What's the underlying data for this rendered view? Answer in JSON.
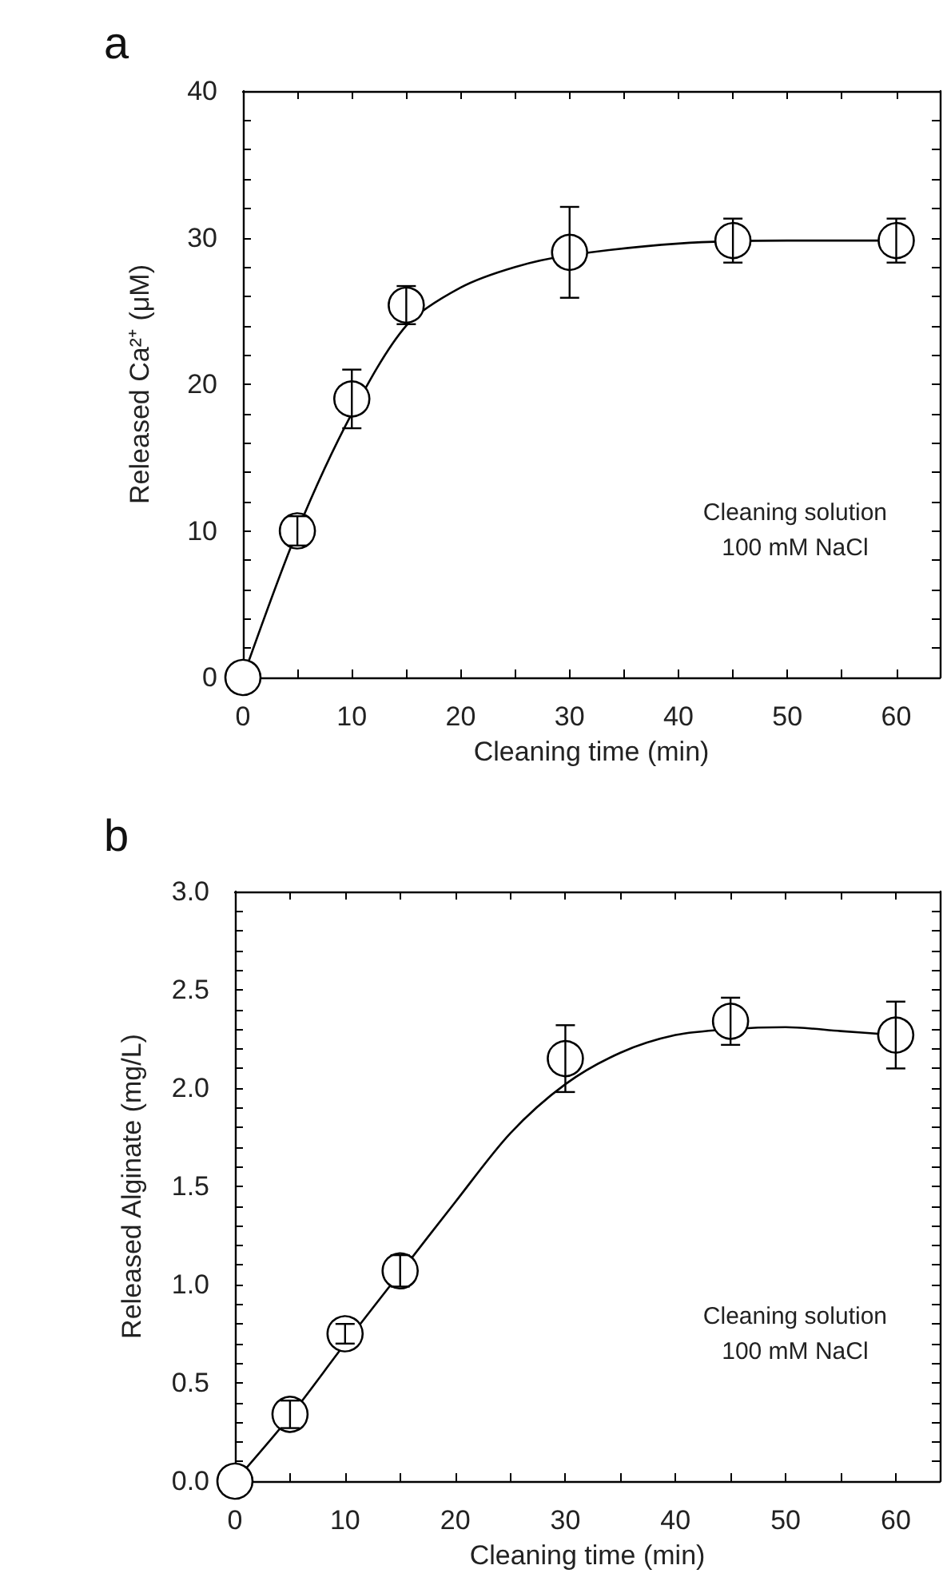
{
  "chart_data": [
    {
      "type": "scatter",
      "title": "a",
      "xlabel": "Cleaning time (min)",
      "ylabel": "Released Ca²⁺ (μM)",
      "annotations": [
        "Cleaning solution\n100 mM NaCl"
      ],
      "marker": "circle",
      "grid": false,
      "xlim": [
        0,
        64
      ],
      "xticks": [
        0,
        {
          "value": 5,
          "label": null
        },
        10,
        {
          "value": 15,
          "label": null
        },
        20,
        {
          "value": 25,
          "label": null
        },
        30,
        {
          "value": 35,
          "label": null
        },
        40,
        {
          "value": 45,
          "label": null
        },
        50,
        {
          "value": 55,
          "label": null
        },
        60
      ],
      "ylim": [
        0,
        40
      ],
      "yticks": [
        0,
        {
          "value": 2,
          "label": null
        },
        {
          "value": 4,
          "label": null
        },
        {
          "value": 6,
          "label": null
        },
        {
          "value": 8,
          "label": null
        },
        10,
        {
          "value": 12,
          "label": null
        },
        {
          "value": 14,
          "label": null
        },
        {
          "value": 16,
          "label": null
        },
        {
          "value": 18,
          "label": null
        },
        20,
        {
          "value": 22,
          "label": null
        },
        {
          "value": 24,
          "label": null
        },
        {
          "value": 26,
          "label": null
        },
        {
          "value": 28,
          "label": null
        },
        30,
        {
          "value": 32,
          "label": null
        },
        {
          "value": 34,
          "label": null
        },
        {
          "value": 36,
          "label": null
        },
        {
          "value": 38,
          "label": null
        },
        40
      ],
      "series": [
        {
          "color": "#000000",
          "x": [
            0,
            5,
            10,
            15,
            30,
            45,
            60
          ],
          "values": [
            0,
            10,
            19,
            25.4,
            29,
            29.8,
            29.8
          ],
          "errors": [
            null,
            1,
            2,
            1.3,
            3.1,
            1.5,
            1.5
          ]
        },
        {
          "type": "line",
          "marker": "none",
          "color": "#000000",
          "x": [
            0,
            5,
            10,
            15,
            20,
            25,
            30,
            40,
            50,
            60
          ],
          "values": [
            0,
            10,
            18,
            24,
            26.6,
            28,
            28.8,
            29.6,
            29.8,
            29.8
          ]
        }
      ]
    },
    {
      "type": "scatter",
      "title": "b",
      "xlabel": "Cleaning time (min)",
      "ylabel": "Released Alginate (mg/L)",
      "annotations": [
        "Cleaning solution\n100 mM NaCl"
      ],
      "marker": "circle",
      "grid": false,
      "xlim": [
        0,
        64
      ],
      "xticks": [
        0,
        {
          "value": 5,
          "label": null
        },
        10,
        {
          "value": 15,
          "label": null
        },
        20,
        {
          "value": 25,
          "label": null
        },
        30,
        {
          "value": 35,
          "label": null
        },
        40,
        {
          "value": 45,
          "label": null
        },
        50,
        {
          "value": 55,
          "label": null
        },
        60
      ],
      "ylim": [
        0,
        3
      ],
      "yticks": [
        {
          "value": 0,
          "label": "0.0"
        },
        {
          "value": 0.1,
          "label": null
        },
        {
          "value": 0.2,
          "label": null
        },
        {
          "value": 0.3,
          "label": null
        },
        {
          "value": 0.4,
          "label": null
        },
        0.5,
        {
          "value": 0.6,
          "label": null
        },
        {
          "value": 0.7,
          "label": null
        },
        {
          "value": 0.8,
          "label": null
        },
        {
          "value": 0.9,
          "label": null
        },
        {
          "value": 1,
          "label": "1.0"
        },
        {
          "value": 1.1,
          "label": null
        },
        {
          "value": 1.2,
          "label": null
        },
        {
          "value": 1.3,
          "label": null
        },
        {
          "value": 1.4,
          "label": null
        },
        1.5,
        {
          "value": 1.6,
          "label": null
        },
        {
          "value": 1.7,
          "label": null
        },
        {
          "value": 1.8,
          "label": null
        },
        {
          "value": 1.9,
          "label": null
        },
        {
          "value": 2,
          "label": "2.0"
        },
        {
          "value": 2.1,
          "label": null
        },
        {
          "value": 2.2,
          "label": null
        },
        {
          "value": 2.3,
          "label": null
        },
        {
          "value": 2.4,
          "label": null
        },
        2.5,
        {
          "value": 2.6,
          "label": null
        },
        {
          "value": 2.7,
          "label": null
        },
        {
          "value": 2.8,
          "label": null
        },
        {
          "value": 2.9,
          "label": null
        },
        {
          "value": 3,
          "label": "3.0"
        }
      ],
      "series": [
        {
          "color": "#000000",
          "x": [
            0,
            5,
            10,
            15,
            30,
            45,
            60
          ],
          "values": [
            0,
            0.34,
            0.75,
            1.07,
            2.15,
            2.34,
            2.27
          ],
          "errors": [
            null,
            0.07,
            0.05,
            0.08,
            0.17,
            0.12,
            0.17
          ]
        },
        {
          "type": "line",
          "marker": "none",
          "color": "#000000",
          "x": [
            0,
            5,
            10,
            15,
            20,
            25,
            30,
            35,
            40,
            45,
            50,
            55,
            60
          ],
          "values": [
            0,
            0.33,
            0.7,
            1.06,
            1.42,
            1.77,
            2.02,
            2.18,
            2.27,
            2.3,
            2.31,
            2.29,
            2.27
          ]
        }
      ]
    }
  ]
}
